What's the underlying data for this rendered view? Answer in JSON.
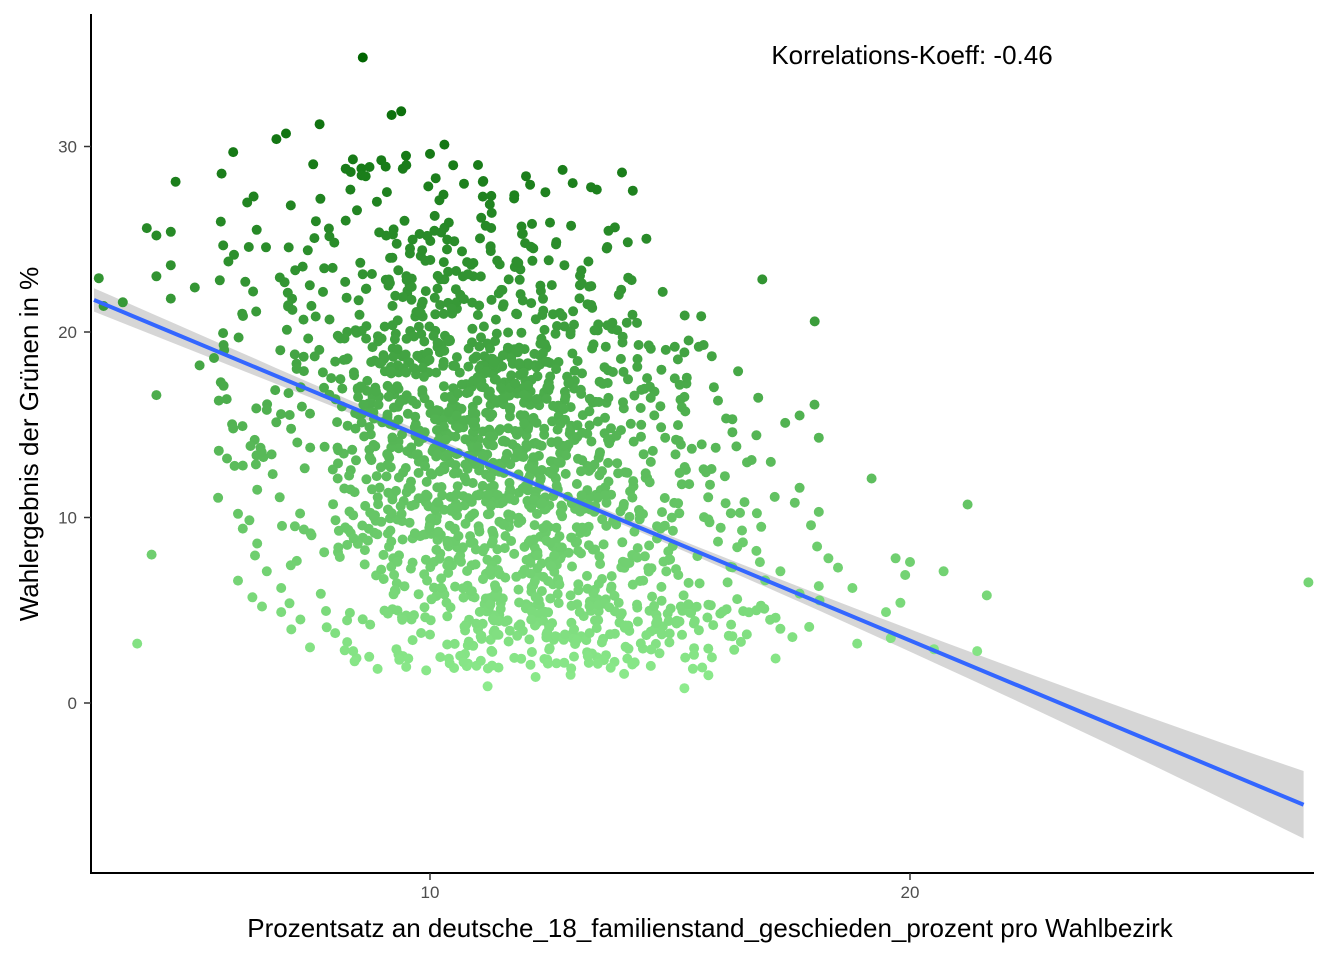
{
  "chart_data": {
    "type": "scatter",
    "title": "",
    "xlabel": "Prozentsatz an deutsche_18_familienstand_geschieden_prozent pro Wahlbezirk",
    "ylabel": "Wahlergebnis der Grünen in %",
    "annotation": "Korrelations-Koeff: -0.46",
    "xlim": [
      3.0,
      28.5
    ],
    "ylim": [
      -9.2,
      37.0
    ],
    "x_ticks": [
      10,
      20
    ],
    "y_ticks": [
      0,
      10,
      20,
      30
    ],
    "grid": false,
    "legend": "none",
    "point_color_scale": {
      "low": "#90ee90",
      "high": "#006400",
      "variable": "y"
    },
    "regression": {
      "method": "lm",
      "x_range": [
        3.0,
        28.2
      ],
      "intercept": 24.97,
      "slope": -1.08,
      "line_color": "#3366ff",
      "band_color": "#cccccc",
      "se_at_ends": 0.45,
      "se_at_far_end": 0.82
    },
    "series": [
      {
        "points": [
          [
            8.6,
            34.8
          ],
          [
            9.4,
            31.9
          ],
          [
            9.2,
            31.7
          ],
          [
            10.3,
            30.1
          ],
          [
            7.7,
            31.2
          ],
          [
            6.8,
            30.4
          ],
          [
            7.0,
            30.7
          ],
          [
            10.0,
            29.6
          ],
          [
            14.0,
            28.6
          ],
          [
            4.7,
            28.1
          ],
          [
            5.9,
            29.7
          ],
          [
            11.0,
            29.0
          ],
          [
            12.0,
            28.4
          ],
          [
            9.5,
            29.5
          ],
          [
            3.1,
            22.9
          ],
          [
            3.2,
            21.4
          ],
          [
            3.6,
            21.6
          ],
          [
            4.1,
            25.6
          ],
          [
            4.6,
            25.4
          ],
          [
            4.3,
            25.2
          ],
          [
            4.3,
            23.0
          ],
          [
            4.6,
            23.6
          ],
          [
            4.6,
            21.8
          ],
          [
            5.1,
            22.4
          ],
          [
            5.8,
            23.8
          ],
          [
            5.7,
            19.3
          ],
          [
            5.5,
            18.6
          ],
          [
            5.2,
            18.2
          ],
          [
            4.3,
            16.6
          ],
          [
            5.7,
            17.1
          ],
          [
            5.6,
            16.3
          ],
          [
            6.6,
            15.8
          ],
          [
            7.5,
            15.6
          ],
          [
            5.9,
            14.8
          ],
          [
            6.7,
            13.4
          ],
          [
            5.6,
            13.6
          ],
          [
            6.1,
            12.8
          ],
          [
            6.4,
            11.5
          ],
          [
            6.0,
            10.2
          ],
          [
            6.1,
            9.4
          ],
          [
            6.4,
            8.6
          ],
          [
            4.2,
            8.0
          ],
          [
            3.9,
            3.2
          ],
          [
            6.6,
            7.1
          ],
          [
            6.9,
            6.2
          ],
          [
            6.9,
            4.9
          ],
          [
            7.3,
            4.5
          ],
          [
            6.5,
            5.2
          ],
          [
            7.5,
            3.0
          ],
          [
            6.0,
            6.6
          ],
          [
            6.3,
            5.7
          ],
          [
            8.4,
            2.8
          ],
          [
            9.3,
            2.9
          ],
          [
            11.2,
            0.9
          ],
          [
            12.2,
            1.4
          ],
          [
            15.3,
            0.8
          ],
          [
            15.8,
            1.5
          ],
          [
            10.7,
            2.2
          ],
          [
            13.0,
            2.5
          ],
          [
            14.6,
            2.0
          ],
          [
            17.2,
            2.4
          ],
          [
            16.6,
            3.7
          ],
          [
            17.9,
            4.1
          ],
          [
            18.9,
            3.2
          ],
          [
            19.6,
            3.5
          ],
          [
            20.5,
            2.9
          ],
          [
            21.4,
            2.8
          ],
          [
            19.5,
            4.9
          ],
          [
            19.8,
            5.4
          ],
          [
            19.9,
            6.9
          ],
          [
            20.0,
            7.6
          ],
          [
            20.7,
            7.1
          ],
          [
            21.6,
            5.8
          ],
          [
            19.7,
            7.8
          ],
          [
            18.8,
            6.2
          ],
          [
            18.5,
            7.3
          ],
          [
            18.1,
            6.3
          ],
          [
            17.7,
            5.9
          ],
          [
            18.3,
            7.8
          ],
          [
            17.3,
            7.1
          ],
          [
            16.5,
            9.3
          ],
          [
            16.8,
            8.2
          ],
          [
            17.1,
            13.0
          ],
          [
            16.7,
            13.1
          ],
          [
            17.6,
            10.8
          ],
          [
            17.7,
            11.6
          ],
          [
            18.1,
            10.3
          ],
          [
            18.1,
            14.3
          ],
          [
            17.7,
            15.5
          ],
          [
            17.4,
            15.1
          ],
          [
            16.3,
            14.6
          ],
          [
            16.3,
            15.3
          ],
          [
            16.0,
            16.3
          ],
          [
            19.2,
            12.1
          ],
          [
            21.2,
            10.7
          ],
          [
            28.3,
            6.5
          ],
          [
            14.6,
            19.1
          ],
          [
            15.3,
            18.9
          ],
          [
            15.6,
            19.2
          ],
          [
            15.7,
            19.3
          ],
          [
            15.1,
            19.2
          ],
          [
            13.0,
            20.4
          ],
          [
            13.9,
            20.1
          ],
          [
            14.1,
            20.5
          ],
          [
            12.8,
            23.6
          ],
          [
            13.3,
            23.8
          ],
          [
            14.2,
            22.8
          ],
          [
            12.5,
            25.9
          ],
          [
            12.1,
            24.6
          ],
          [
            11.8,
            23.8
          ],
          [
            11.1,
            28.1
          ],
          [
            11.1,
            27.3
          ],
          [
            12.3,
            22.5
          ],
          [
            13.8,
            20.5
          ],
          [
            12.8,
            20.3
          ],
          [
            14.4,
            15.0
          ],
          [
            14.8,
            16.0
          ],
          [
            15.1,
            17.5
          ],
          [
            15.3,
            16.5
          ],
          [
            14.9,
            14.3
          ],
          [
            14.6,
            13.0
          ],
          [
            15.2,
            12.4
          ],
          [
            15.4,
            11.8
          ],
          [
            15.7,
            12.6
          ],
          [
            15.8,
            9.9
          ],
          [
            16.0,
            8.7
          ],
          [
            16.4,
            8.4
          ],
          [
            16.9,
            9.5
          ],
          [
            16.2,
            6.5
          ],
          [
            16.4,
            5.6
          ],
          [
            15.8,
            5.3
          ],
          [
            15.9,
            4.2
          ],
          [
            16.8,
            5.0
          ],
          [
            17.3,
            4.0
          ],
          [
            16.3,
            3.6
          ],
          [
            17.2,
            4.6
          ],
          [
            15.5,
            2.6
          ]
        ]
      }
    ]
  }
}
